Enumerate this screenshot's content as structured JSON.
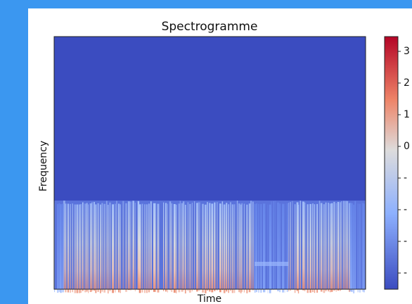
{
  "title": "Spectrogramme",
  "x_label": "Time",
  "y_label": "Frequency",
  "colorbar": {
    "tick_labels": [
      "3",
      "2",
      "1",
      "0",
      "-",
      "-",
      "-",
      "-"
    ]
  }
}
